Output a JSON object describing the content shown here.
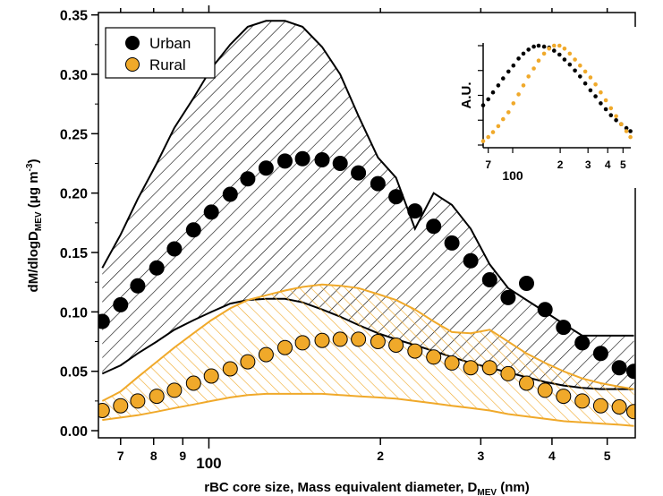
{
  "chart_data": {
    "type": "scatter",
    "xlabel": "rBC core size, Mass equivalent diameter, D",
    "xlabel_sub": "MEV",
    "xlabel_unit": " (nm)",
    "ylabel": "dM/dlogD",
    "ylabel_sub": "MEV",
    "ylabel_unit": " (μg m",
    "ylabel_exp": "-3",
    "ylabel_close": ")",
    "xscale": "log",
    "xlim": [
      64,
      560
    ],
    "ylim": [
      -0.006,
      0.352
    ],
    "y_ticks": [
      0.0,
      0.05,
      0.1,
      0.15,
      0.2,
      0.25,
      0.3,
      0.35
    ],
    "y_tick_labels": [
      "0.00",
      "0.05",
      "0.10",
      "0.15",
      "0.20",
      "0.25",
      "0.30",
      "0.35"
    ],
    "x_ticks": [
      70,
      80,
      90,
      100,
      200,
      300,
      400,
      500
    ],
    "x_tick_labels": [
      "7",
      "8",
      "9",
      "100",
      "2",
      "3",
      "4",
      "5"
    ],
    "legend_position": "top-left",
    "series": [
      {
        "name": "Urban",
        "color": "#000000",
        "x": [
          65,
          70,
          75,
          81,
          87,
          94,
          101,
          109,
          117,
          126,
          136,
          146,
          158,
          170,
          183,
          198,
          213,
          230,
          248,
          267,
          288,
          311,
          335,
          361,
          389,
          419,
          452,
          487,
          525,
          557
        ],
        "y": [
          0.092,
          0.106,
          0.122,
          0.137,
          0.153,
          0.169,
          0.184,
          0.199,
          0.212,
          0.221,
          0.227,
          0.229,
          0.228,
          0.225,
          0.217,
          0.208,
          0.197,
          0.185,
          0.172,
          0.158,
          0.143,
          0.127,
          0.112,
          0.124,
          0.102,
          0.087,
          0.074,
          0.065,
          0.053,
          0.05
        ],
        "band_upper": [
          0.137,
          0.165,
          0.195,
          0.225,
          0.255,
          0.28,
          0.305,
          0.325,
          0.34,
          0.345,
          0.345,
          0.34,
          0.323,
          0.3,
          0.265,
          0.23,
          0.213,
          0.17,
          0.2,
          0.19,
          0.17,
          0.14,
          0.12,
          0.11,
          0.1,
          0.09,
          0.08,
          0.08,
          0.08,
          0.08
        ],
        "band_lower": [
          0.048,
          0.055,
          0.065,
          0.075,
          0.085,
          0.093,
          0.1,
          0.107,
          0.11,
          0.111,
          0.111,
          0.108,
          0.102,
          0.096,
          0.089,
          0.082,
          0.077,
          0.072,
          0.067,
          0.062,
          0.057,
          0.053,
          0.049,
          0.045,
          0.041,
          0.038,
          0.036,
          0.035,
          0.035,
          0.035
        ]
      },
      {
        "name": "Rural",
        "color": "#f0a92a",
        "x": [
          65,
          70,
          75,
          81,
          87,
          94,
          101,
          109,
          117,
          126,
          136,
          146,
          158,
          170,
          183,
          198,
          213,
          230,
          248,
          267,
          288,
          311,
          335,
          361,
          389,
          419,
          452,
          487,
          525,
          557
        ],
        "y": [
          0.017,
          0.021,
          0.025,
          0.029,
          0.034,
          0.04,
          0.046,
          0.052,
          0.058,
          0.064,
          0.07,
          0.074,
          0.076,
          0.077,
          0.077,
          0.075,
          0.072,
          0.067,
          0.062,
          0.057,
          0.053,
          0.053,
          0.048,
          0.04,
          0.034,
          0.029,
          0.025,
          0.021,
          0.02,
          0.016
        ],
        "band_upper": [
          0.025,
          0.033,
          0.045,
          0.058,
          0.07,
          0.082,
          0.093,
          0.103,
          0.11,
          0.114,
          0.118,
          0.121,
          0.123,
          0.122,
          0.12,
          0.115,
          0.11,
          0.102,
          0.092,
          0.083,
          0.082,
          0.085,
          0.075,
          0.065,
          0.057,
          0.05,
          0.044,
          0.04,
          0.037,
          0.035
        ],
        "band_lower": [
          0.009,
          0.011,
          0.013,
          0.016,
          0.019,
          0.022,
          0.025,
          0.028,
          0.03,
          0.031,
          0.031,
          0.031,
          0.031,
          0.03,
          0.029,
          0.028,
          0.027,
          0.025,
          0.023,
          0.021,
          0.019,
          0.017,
          0.014,
          0.012,
          0.01,
          0.008,
          0.007,
          0.006,
          0.005,
          0.004
        ]
      }
    ],
    "inset": {
      "ylabel": "A.U.",
      "xscale": "log",
      "xlim": [
        65,
        560
      ],
      "x_ticks": [
        70,
        100,
        200,
        300,
        400,
        500
      ],
      "x_tick_labels": [
        "7",
        "100",
        "2",
        "3",
        "4",
        "5"
      ],
      "urban_x": [
        65,
        70,
        75,
        81,
        87,
        94,
        101,
        109,
        117,
        126,
        136,
        146,
        158,
        170,
        183,
        198,
        213,
        230,
        248,
        267,
        288,
        311,
        335,
        361,
        389,
        419,
        452,
        487,
        525,
        557
      ],
      "urban_y": [
        0.4,
        0.46,
        0.53,
        0.6,
        0.67,
        0.74,
        0.8,
        0.87,
        0.92,
        0.96,
        0.99,
        1.0,
        0.99,
        0.98,
        0.95,
        0.91,
        0.86,
        0.81,
        0.75,
        0.69,
        0.62,
        0.55,
        0.49,
        0.42,
        0.36,
        0.3,
        0.25,
        0.21,
        0.17,
        0.14
      ],
      "rural_x": [
        65,
        70,
        75,
        81,
        87,
        94,
        101,
        109,
        117,
        126,
        136,
        146,
        158,
        170,
        183,
        198,
        213,
        230,
        248,
        267,
        288,
        311,
        335,
        361,
        389,
        419,
        452,
        487,
        525,
        557
      ],
      "rural_y": [
        0.04,
        0.08,
        0.13,
        0.19,
        0.26,
        0.33,
        0.42,
        0.51,
        0.6,
        0.69,
        0.77,
        0.85,
        0.92,
        0.97,
        1.0,
        1.0,
        0.97,
        0.92,
        0.86,
        0.8,
        0.74,
        0.68,
        0.61,
        0.53,
        0.45,
        0.37,
        0.29,
        0.21,
        0.14,
        0.08
      ]
    }
  }
}
